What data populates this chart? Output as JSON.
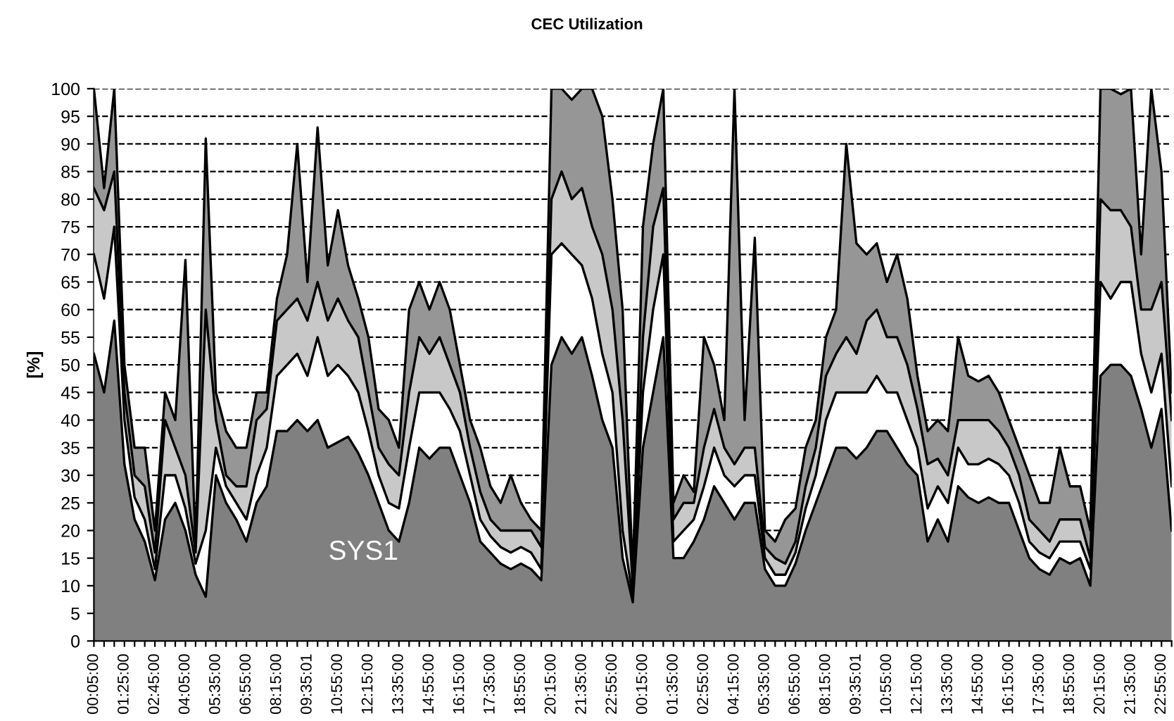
{
  "chart_data": {
    "type": "area",
    "stacked": true,
    "title": "CEC Utilization",
    "ylabel": "[%]",
    "categories": [
      "00:05:00",
      null,
      null,
      "01:25:00",
      null,
      null,
      "02:45:00",
      null,
      null,
      "04:05:00",
      null,
      null,
      "05:35:00",
      null,
      null,
      "06:55:00",
      null,
      null,
      "08:15:00",
      null,
      null,
      "09:35:01",
      null,
      null,
      "10:55:00",
      null,
      null,
      "12:15:00",
      null,
      null,
      "13:35:00",
      null,
      null,
      "14:55:00",
      null,
      null,
      "16:15:00",
      null,
      null,
      "17:35:00",
      null,
      null,
      "18:55:00",
      null,
      null,
      "20:15:00",
      null,
      null,
      "21:35:00",
      null,
      null,
      "22:55:00",
      null,
      null,
      "00:15:00",
      null,
      null,
      "01:35:00",
      null,
      null,
      "02:55:00",
      null,
      null,
      "04:15:00",
      null,
      null,
      "05:35:00",
      null,
      null,
      "06:55:00",
      null,
      null,
      "08:15:00",
      null,
      null,
      "09:35:01",
      null,
      null,
      "10:55:00",
      null,
      null,
      "12:15:00",
      null,
      null,
      "13:35:00",
      null,
      null,
      "14:55:00",
      null,
      null,
      "16:15:00",
      null,
      null,
      "17:35:00",
      null,
      null,
      "18:55:00",
      null,
      null,
      "20:15:00",
      null,
      null,
      "21:35:00",
      null,
      null,
      "22:55:00",
      null
    ],
    "series": [
      {
        "name": "SYS1",
        "color": "#808080",
        "values": [
          52,
          45,
          58,
          32,
          22,
          18,
          11,
          22,
          25,
          20,
          12,
          8,
          30,
          25,
          22,
          18,
          25,
          28,
          38,
          38,
          40,
          38,
          40,
          35,
          36,
          37,
          34,
          30,
          25,
          20,
          18,
          25,
          35,
          33,
          35,
          35,
          30,
          25,
          18,
          16,
          14,
          13,
          14,
          13,
          11,
          50,
          55,
          52,
          55,
          48,
          40,
          35,
          15,
          7,
          35,
          45,
          55,
          15,
          15,
          18,
          22,
          28,
          25,
          22,
          25,
          25,
          13,
          10,
          10,
          14,
          20,
          25,
          30,
          35,
          35,
          33,
          35,
          38,
          38,
          35,
          32,
          30,
          18,
          22,
          18,
          28,
          26,
          25,
          26,
          25,
          25,
          20,
          15,
          13,
          12,
          15,
          14,
          15,
          10,
          48,
          50,
          50,
          48,
          42,
          35,
          42,
          20
        ]
      },
      {
        "color": "#ffffff",
        "values": [
          18,
          17,
          17,
          8,
          4,
          4,
          2,
          8,
          5,
          4,
          2,
          12,
          5,
          3,
          3,
          4,
          5,
          7,
          10,
          12,
          12,
          10,
          15,
          13,
          14,
          11,
          11,
          8,
          5,
          5,
          6,
          10,
          10,
          12,
          10,
          7,
          8,
          5,
          4,
          3,
          3,
          3,
          3,
          3,
          2,
          20,
          17,
          18,
          13,
          14,
          12,
          10,
          5,
          1,
          10,
          15,
          15,
          3,
          5,
          4,
          6,
          7,
          5,
          6,
          5,
          5,
          2,
          2,
          2,
          2,
          4,
          5,
          10,
          10,
          10,
          12,
          10,
          10,
          7,
          10,
          8,
          5,
          6,
          6,
          7,
          7,
          6,
          7,
          7,
          7,
          5,
          5,
          3,
          3,
          3,
          3,
          4,
          3,
          3,
          17,
          12,
          15,
          17,
          10,
          10,
          10,
          8
        ]
      },
      {
        "color": "#c8c8c8",
        "values": [
          12,
          16,
          10,
          5,
          4,
          6,
          3,
          10,
          5,
          6,
          2,
          40,
          5,
          2,
          3,
          6,
          10,
          7,
          10,
          10,
          10,
          10,
          10,
          10,
          12,
          10,
          10,
          7,
          5,
          7,
          6,
          10,
          10,
          7,
          10,
          8,
          7,
          5,
          5,
          3,
          3,
          4,
          3,
          4,
          4,
          10,
          13,
          10,
          14,
          13,
          18,
          15,
          20,
          2,
          10,
          15,
          12,
          4,
          5,
          3,
          7,
          7,
          5,
          4,
          5,
          5,
          2,
          3,
          2,
          2,
          4,
          5,
          8,
          7,
          10,
          7,
          13,
          12,
          10,
          10,
          10,
          7,
          8,
          5,
          5,
          5,
          8,
          8,
          7,
          6,
          5,
          5,
          4,
          4,
          3,
          4,
          4,
          4,
          2,
          15,
          16,
          13,
          10,
          8,
          15,
          13,
          12
        ]
      },
      {
        "color": "#969696",
        "values": [
          18,
          4,
          15,
          5,
          5,
          7,
          4,
          5,
          5,
          39,
          1,
          31,
          5,
          8,
          7,
          7,
          5,
          3,
          4,
          10,
          28,
          7,
          28,
          10,
          16,
          10,
          7,
          10,
          7,
          8,
          5,
          15,
          10,
          8,
          10,
          10,
          5,
          5,
          8,
          6,
          5,
          10,
          5,
          2,
          3,
          20,
          15,
          18,
          18,
          25,
          25,
          20,
          20,
          2,
          20,
          15,
          18,
          3,
          5,
          2,
          20,
          8,
          5,
          68,
          5,
          38,
          3,
          3,
          8,
          6,
          7,
          5,
          7,
          8,
          35,
          20,
          12,
          12,
          10,
          15,
          12,
          6,
          6,
          7,
          8,
          15,
          8,
          7,
          8,
          7,
          5,
          5,
          8,
          5,
          7,
          13,
          6,
          6,
          5,
          20,
          22,
          21,
          25,
          10,
          40,
          20,
          5
        ]
      }
    ],
    "ylim": [
      0,
      100
    ],
    "yticks": [
      0,
      5,
      10,
      15,
      20,
      25,
      30,
      35,
      40,
      45,
      50,
      55,
      60,
      65,
      70,
      75,
      80,
      85,
      90,
      95,
      100
    ],
    "grid": "y",
    "legend": false,
    "line_style": "solid",
    "marker": "none"
  }
}
